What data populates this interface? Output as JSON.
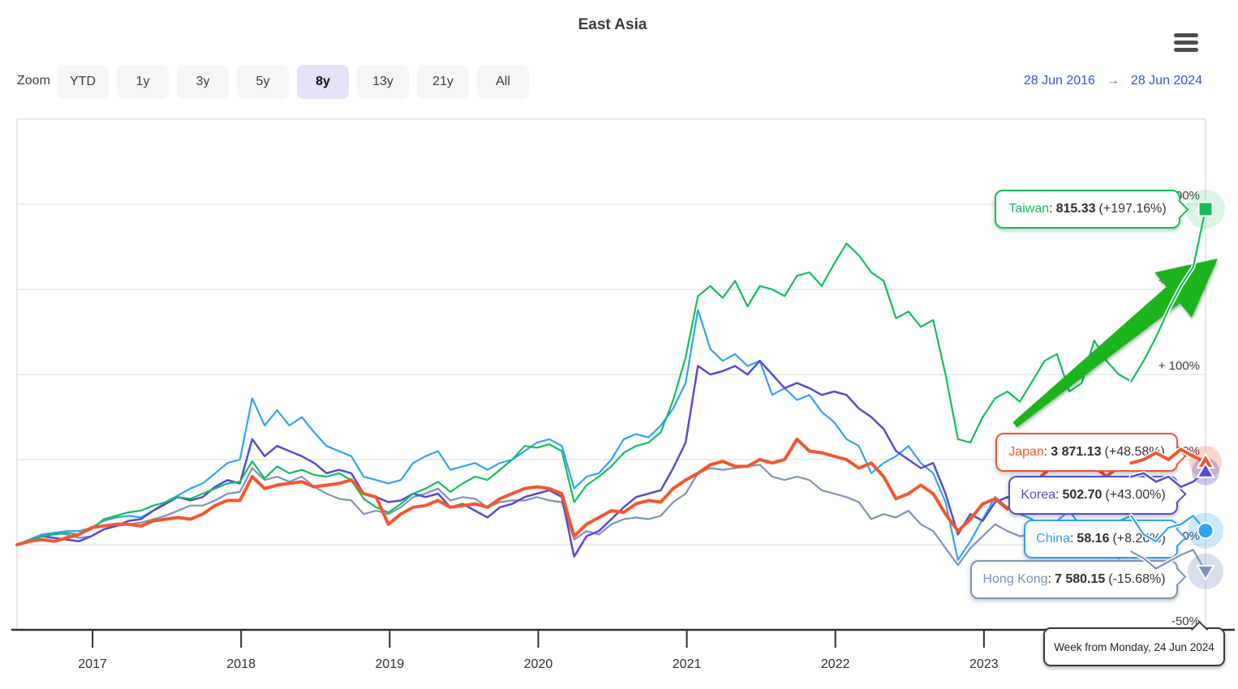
{
  "header": {
    "title": "East Asia"
  },
  "toolbar": {
    "zoom_label": "Zoom",
    "range_buttons": [
      "YTD",
      "1y",
      "3y",
      "5y",
      "8y",
      "13y",
      "21y",
      "All"
    ],
    "selected_range": "8y",
    "date_from": "28 Jun 2016",
    "date_arrow": "→",
    "date_to": "28 Jun 2024"
  },
  "chart_data": {
    "type": "line",
    "title": "East Asia",
    "x_range": {
      "start": "28 Jun 2016",
      "end": "28 Jun 2024",
      "months": 96
    },
    "x_ticks": [
      {
        "label": "2017",
        "month": 6.1
      },
      {
        "label": "2018",
        "month": 18.1
      },
      {
        "label": "2019",
        "month": 30.1
      },
      {
        "label": "2020",
        "month": 42.1
      },
      {
        "label": "2021",
        "month": 54.1
      },
      {
        "label": "2022",
        "month": 66.1
      },
      {
        "label": "2023",
        "month": 78.1
      }
    ],
    "y_ticks": [
      {
        "label": "+ 200%",
        "value": 200
      },
      {
        "label": "+ 150%",
        "value": 150
      },
      {
        "label": "+ 100%",
        "value": 100
      },
      {
        "label": "+ 50%",
        "value": 50
      },
      {
        "label": "0%",
        "value": 0
      },
      {
        "label": "-50%",
        "value": -50
      }
    ],
    "grid": true,
    "crosshair_label": "Week from Monday, 24 Jun 2024",
    "annotation": {
      "shape": "up-right-arrow",
      "color": "#1FB41F"
    },
    "series": [
      {
        "name": "Taiwan",
        "color": "#12BE5C",
        "marker": "square",
        "line_width": 2.2,
        "last_value": "815.33",
        "change_pct": "+197.16%",
        "values_pct_monthly": [
          0,
          2,
          5,
          6,
          7,
          6,
          9,
          15,
          17,
          19,
          20,
          23,
          25,
          28,
          27,
          30,
          33,
          36,
          37,
          49,
          39,
          46,
          42,
          44,
          41,
          40,
          42,
          38,
          27,
          22,
          19,
          24,
          30,
          33,
          37,
          31,
          36,
          40,
          38,
          44,
          50,
          58,
          57,
          59,
          55,
          25,
          35,
          40,
          46,
          54,
          58,
          60,
          66,
          85,
          110,
          146,
          152,
          145,
          155,
          140,
          152,
          150,
          146,
          158,
          160,
          152,
          165,
          177,
          170,
          160,
          155,
          133,
          137,
          128,
          132,
          100,
          62,
          60,
          75,
          86,
          90,
          84,
          96,
          108,
          112,
          90,
          95,
          120,
          108,
          100,
          96,
          108,
          122,
          138,
          152,
          163,
          197.16
        ]
      },
      {
        "name": "Japan",
        "color": "#F4562E",
        "marker": "triangle-up",
        "line_width": 4,
        "last_value": "3 871.13",
        "change_pct": "+48.58%",
        "values_pct_monthly": [
          0,
          2,
          3,
          2,
          4,
          6,
          10,
          11,
          12,
          12,
          11,
          14,
          15,
          16,
          15,
          18,
          23,
          26,
          26,
          40,
          33,
          35,
          36,
          37,
          34,
          35,
          36,
          38,
          30,
          28,
          12,
          18,
          22,
          23,
          26,
          22,
          23,
          24,
          22,
          27,
          30,
          33,
          34,
          33,
          30,
          5,
          12,
          16,
          20,
          19,
          24,
          26,
          25,
          33,
          38,
          42,
          47,
          49,
          46,
          46,
          50,
          48,
          50,
          62,
          55,
          54,
          52,
          50,
          45,
          48,
          40,
          27,
          30,
          35,
          30,
          18,
          8,
          15,
          24,
          27,
          21,
          27,
          35,
          42,
          48,
          47,
          44,
          46,
          40,
          46,
          48,
          50,
          54,
          50,
          56,
          52,
          48.58
        ]
      },
      {
        "name": "Korea",
        "color": "#544CCF",
        "marker": "triangle-up",
        "line_width": 2.5,
        "last_value": "502.70",
        "change_pct": "+43.00%",
        "values_pct_monthly": [
          0,
          2,
          5,
          4,
          3,
          2,
          5,
          9,
          11,
          14,
          15,
          20,
          24,
          28,
          26,
          28,
          34,
          38,
          36,
          62,
          52,
          58,
          55,
          52,
          48,
          42,
          44,
          42,
          30,
          28,
          25,
          26,
          30,
          28,
          30,
          22,
          24,
          20,
          16,
          22,
          24,
          28,
          30,
          32,
          28,
          -7,
          5,
          8,
          15,
          22,
          28,
          30,
          32,
          45,
          60,
          105,
          100,
          102,
          105,
          100,
          108,
          100,
          92,
          95,
          92,
          88,
          90,
          88,
          80,
          75,
          68,
          55,
          50,
          45,
          48,
          30,
          6,
          18,
          14,
          25,
          28,
          25,
          30,
          28,
          32,
          35,
          30,
          28,
          25,
          33,
          40,
          42,
          37,
          40,
          34,
          37,
          43
        ]
      },
      {
        "name": "China",
        "color": "#2FA3F7",
        "marker": "circle",
        "line_width": 2.2,
        "last_value": "58.16",
        "change_pct": "+8.26%",
        "values_pct_monthly": [
          0,
          3,
          6,
          7,
          8,
          8,
          10,
          14,
          16,
          17,
          16,
          20,
          25,
          29,
          33,
          36,
          42,
          48,
          50,
          86,
          70,
          79,
          70,
          75,
          66,
          58,
          55,
          52,
          40,
          38,
          36,
          38,
          48,
          52,
          55,
          44,
          46,
          48,
          44,
          48,
          50,
          55,
          60,
          62,
          58,
          33,
          40,
          42,
          50,
          62,
          65,
          63,
          70,
          80,
          95,
          138,
          115,
          108,
          112,
          105,
          108,
          88,
          92,
          85,
          88,
          78,
          72,
          62,
          58,
          42,
          48,
          52,
          58,
          48,
          42,
          25,
          -9,
          2,
          15,
          28,
          22,
          18,
          15,
          8,
          14,
          20,
          10,
          5,
          10,
          14,
          17,
          6,
          2,
          10,
          12,
          17,
          8.26
        ]
      },
      {
        "name": "Hong Kong",
        "color": "#7E92BC",
        "marker": "triangle-down",
        "line_width": 2.2,
        "last_value": "7 580.15",
        "change_pct": "-15.68%",
        "values_pct_monthly": [
          0,
          3,
          6,
          7,
          6,
          4,
          5,
          9,
          11,
          12,
          13,
          15,
          17,
          20,
          23,
          23,
          26,
          30,
          31,
          45,
          38,
          40,
          37,
          40,
          34,
          30,
          27,
          26,
          18,
          20,
          18,
          22,
          28,
          30,
          33,
          26,
          28,
          27,
          22,
          25,
          26,
          26,
          28,
          26,
          25,
          3,
          8,
          6,
          12,
          15,
          16,
          15,
          17,
          25,
          30,
          42,
          45,
          44,
          45,
          46,
          47,
          40,
          38,
          40,
          38,
          32,
          30,
          28,
          25,
          15,
          18,
          16,
          20,
          12,
          8,
          -2,
          -12,
          -2,
          5,
          12,
          8,
          5,
          6,
          0,
          4,
          6,
          0,
          -2,
          -5,
          -8,
          -4,
          -8,
          -14,
          -10,
          -6,
          -3,
          -15.68
        ]
      }
    ]
  }
}
